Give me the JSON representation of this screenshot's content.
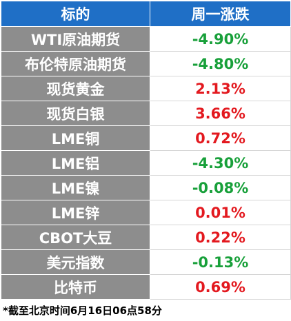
{
  "table": {
    "header": [
      "标的",
      "周一涨跌"
    ],
    "rows": [
      [
        "WTI原油期货",
        "-4.90%"
      ],
      [
        "布伦特原油期货",
        "-4.80%"
      ],
      [
        "现货黄金",
        "2.13%"
      ],
      [
        "现货白银",
        "3.66%"
      ],
      [
        "LME铜",
        "0.72%"
      ],
      [
        "LME铝",
        "-4.30%"
      ],
      [
        "LME镍",
        "-0.08%"
      ],
      [
        "LME锌",
        "0.01%"
      ],
      [
        "CBOT大豆",
        "0.22%"
      ],
      [
        "美元指数",
        "-0.13%"
      ],
      [
        "比特币",
        "0.69%"
      ]
    ],
    "colors": {
      "header": "#1f6fc6",
      "label_cell": "#8d8d8d",
      "up": "#e3191f",
      "down": "#18a03a"
    }
  },
  "footnote": "*截至北京时间6月16日06点58分"
}
